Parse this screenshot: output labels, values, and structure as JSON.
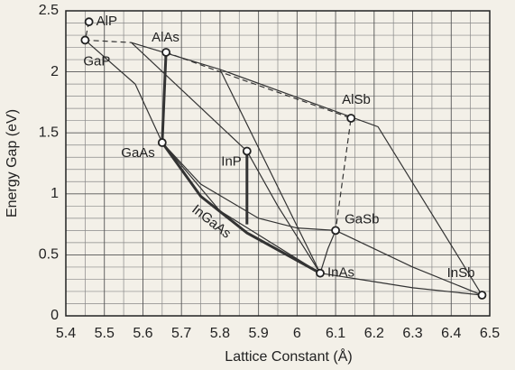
{
  "chart_data": {
    "type": "line",
    "xlabel": "Lattice Constant (Å)",
    "ylabel": "Energy Gap (eV)",
    "xlim": [
      5.4,
      6.5
    ],
    "ylim": [
      0,
      2.5
    ],
    "xticks": [
      5.4,
      5.5,
      5.6,
      5.7,
      5.8,
      5.9,
      6,
      6.1,
      6.2,
      6.3,
      6.4,
      6.5
    ],
    "yticks": [
      0,
      0.5,
      1,
      1.5,
      2,
      2.5
    ],
    "xminor": [
      5.45,
      5.55,
      5.65,
      5.75,
      5.85,
      5.95,
      6.05,
      6.15,
      6.25,
      6.35,
      6.45
    ],
    "yminor": [
      0.1,
      0.2,
      0.3,
      0.4,
      0.6,
      0.7,
      0.8,
      0.9,
      1.1,
      1.2,
      1.3,
      1.4,
      1.6,
      1.7,
      1.8,
      1.9,
      2.1,
      2.2,
      2.3,
      2.4
    ],
    "grid": true,
    "color": "#333333",
    "lines": [
      {
        "style": "dashed",
        "width": 1.2,
        "x": [
          5.46,
          5.45,
          5.57
        ],
        "y": [
          2.41,
          2.26,
          2.24
        ]
      },
      {
        "style": "solid",
        "width": 1.2,
        "x": [
          5.57,
          5.8,
          6.21,
          6.48
        ],
        "y": [
          2.24,
          2.02,
          1.55,
          0.17
        ]
      },
      {
        "style": "solid",
        "width": 1.2,
        "x": [
          5.57,
          5.87
        ],
        "y": [
          2.24,
          1.35
        ]
      },
      {
        "style": "solid",
        "width": 1.2,
        "x": [
          5.8,
          6.06
        ],
        "y": [
          2.02,
          0.35
        ]
      },
      {
        "style": "solid",
        "width": 1.2,
        "x": [
          5.45,
          5.58,
          5.65
        ],
        "y": [
          2.26,
          1.9,
          1.42
        ]
      },
      {
        "style": "dashed",
        "width": 1.2,
        "x": [
          5.66,
          5.8,
          6.14,
          6.1
        ],
        "y": [
          2.16,
          2.0,
          1.62,
          0.7
        ]
      },
      {
        "style": "solid",
        "width": 3,
        "x": [
          5.66,
          5.65
        ],
        "y": [
          2.16,
          1.42
        ]
      },
      {
        "style": "solid",
        "width": 1.2,
        "x": [
          5.65,
          5.75,
          5.9,
          6.0,
          6.1
        ],
        "y": [
          1.42,
          1.08,
          0.8,
          0.72,
          0.7
        ]
      },
      {
        "style": "solid",
        "width": 3,
        "x": [
          5.65,
          5.75,
          5.87,
          6.06
        ],
        "y": [
          1.42,
          0.98,
          0.68,
          0.35
        ]
      },
      {
        "style": "solid",
        "width": 1.2,
        "x": [
          5.65,
          5.8,
          6.06
        ],
        "y": [
          1.42,
          0.86,
          0.35
        ]
      },
      {
        "style": "solid",
        "width": 3,
        "x": [
          5.87,
          5.87
        ],
        "y": [
          1.35,
          0.75
        ]
      },
      {
        "style": "solid",
        "width": 1.2,
        "x": [
          5.87,
          5.95,
          6.06
        ],
        "y": [
          1.35,
          0.9,
          0.35
        ]
      },
      {
        "style": "solid",
        "width": 1.2,
        "x": [
          6.1,
          6.3,
          6.48
        ],
        "y": [
          0.7,
          0.4,
          0.17
        ]
      },
      {
        "style": "solid",
        "width": 1.2,
        "x": [
          6.06,
          6.3,
          6.48
        ],
        "y": [
          0.35,
          0.23,
          0.17
        ]
      },
      {
        "style": "solid",
        "width": 1.2,
        "x": [
          6.06,
          6.08,
          6.1
        ],
        "y": [
          0.35,
          0.55,
          0.7
        ]
      }
    ],
    "points": {
      "labels": [
        "AlP",
        "GaP",
        "AlAs",
        "GaAs",
        "InP",
        "AlSb",
        "GaSb",
        "InAs",
        "InSb"
      ],
      "x": [
        5.46,
        5.45,
        5.66,
        5.65,
        5.87,
        6.14,
        6.1,
        6.06,
        6.48
      ],
      "y": [
        2.41,
        2.26,
        2.16,
        1.42,
        1.35,
        1.62,
        0.7,
        0.35,
        0.17
      ]
    },
    "annotation": "InGaAs"
  }
}
